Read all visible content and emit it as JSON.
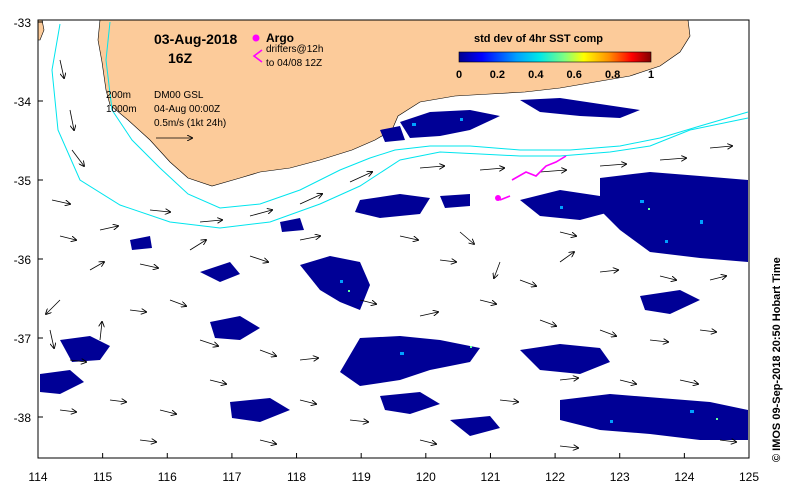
{
  "header": {
    "date": "03-Aug-2018",
    "hour": "16Z",
    "argo_label": "Argo",
    "drifters_label": "drifters@12h",
    "drifters_to": "to 04/08 12Z"
  },
  "legend": {
    "depth_200": "200m",
    "depth_1000": "1000m",
    "product": "DM00 GSL",
    "product_time": "04-Aug 00:00Z",
    "scale_label": "0.5m/s (1kt 24h)"
  },
  "colorbar": {
    "title": "std dev of 4hr SST comp",
    "ticks": [
      "0",
      "0.2",
      "0.4",
      "0.6",
      "0.8",
      "1"
    ],
    "colors": [
      "#00008f",
      "#0000ff",
      "#0070ff",
      "#00d8ff",
      "#60ff9f",
      "#d0ff30",
      "#ffd000",
      "#ff6000",
      "#e00000",
      "#800000"
    ]
  },
  "axes": {
    "x_ticks": [
      "114",
      "115",
      "116",
      "117",
      "118",
      "119",
      "120",
      "121",
      "122",
      "123",
      "124",
      "125"
    ],
    "y_ticks": [
      "-33",
      "-34",
      "-35",
      "-36",
      "-37",
      "-38"
    ]
  },
  "credit": "© IMOS 09-Sep-2018 20:50 Hobart Time",
  "colors": {
    "land": "#fccb9a",
    "isobath": "#00e5ee",
    "drifter": "#ff00ff",
    "sst_dominant": "#000096"
  }
}
